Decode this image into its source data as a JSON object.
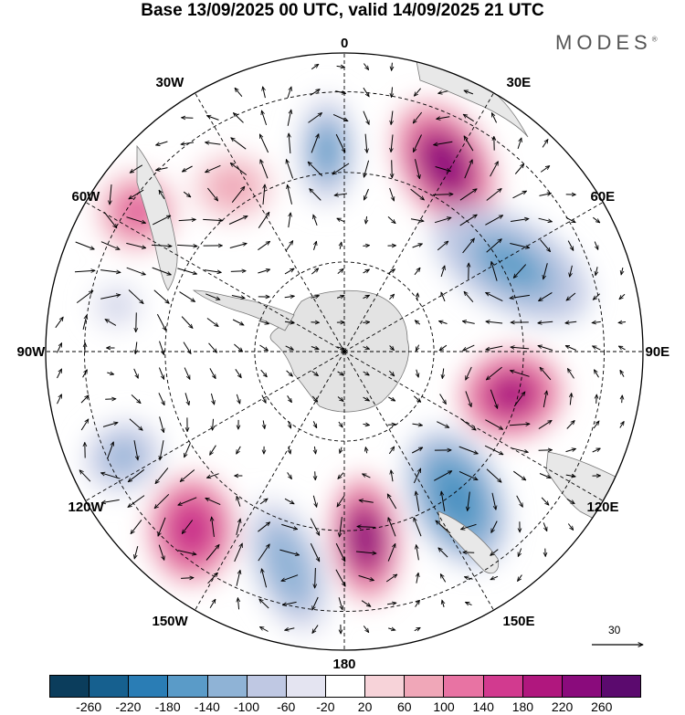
{
  "title": "Base 13/09/2025 00 UTC, valid 14/09/2025 21 UTC",
  "brand": "MODES",
  "brand_mark": "®",
  "longitude_labels": [
    "0",
    "30E",
    "60E",
    "90E",
    "120E",
    "150E",
    "180",
    "150W",
    "120W",
    "90W",
    "60W",
    "30W"
  ],
  "vector_scale_label": "30",
  "colorbar": {
    "ticks": [
      "-260",
      "-220",
      "-180",
      "-140",
      "-100",
      "-60",
      "-20",
      "20",
      "60",
      "100",
      "140",
      "180",
      "220",
      "260"
    ],
    "colors": [
      "#0b3d5c",
      "#16608f",
      "#2a7db5",
      "#5a9bc8",
      "#8fb3d6",
      "#bfc8e3",
      "#e4e4f1",
      "#ffffff",
      "#f7d3d9",
      "#f0a7b8",
      "#e873a3",
      "#d23a8f",
      "#b0177e",
      "#8a0b7c",
      "#5b0a6e"
    ]
  },
  "anomalies": [
    {
      "name": "low-0",
      "value": -170
    },
    {
      "name": "high-30e",
      "value": 240
    },
    {
      "name": "low-60e",
      "value": -180
    },
    {
      "name": "high-105e",
      "value": 230
    },
    {
      "name": "low-140e",
      "value": -190
    },
    {
      "name": "high-170e",
      "value": 250
    },
    {
      "name": "low-160w",
      "value": -140
    },
    {
      "name": "high-140w",
      "value": 190
    },
    {
      "name": "low-115w",
      "value": -130
    },
    {
      "name": "high-60w",
      "value": 150
    },
    {
      "name": "high-45w",
      "value": 90
    },
    {
      "name": "low-80w",
      "value": -80
    }
  ]
}
